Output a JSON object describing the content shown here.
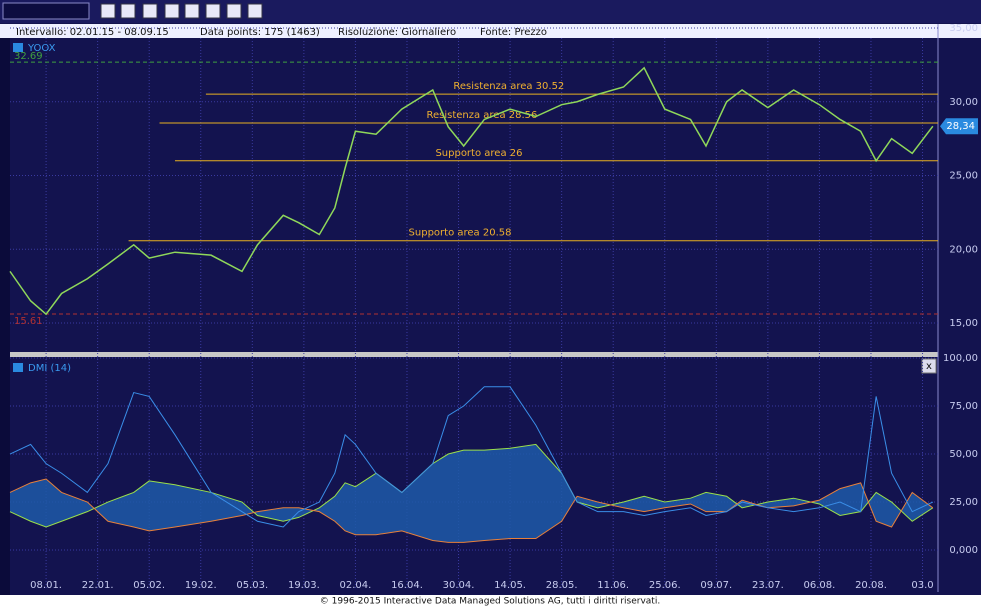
{
  "header": {
    "interval": "Intervallo: 02.01.15 - 08.09.15",
    "points": "Data points: 175 (1463)",
    "resolution": "Risoluzione: Giornaliero",
    "source": "Fonte: Prezzo",
    "close_button": "x"
  },
  "footer": "© 1996-2015 Interactive Data Managed Solutions AG, tutti i diritti riservati.",
  "chart_data": [
    {
      "type": "line",
      "series": [
        {
          "name": "YOOX",
          "color": "#8fd85a",
          "x": [
            0,
            4,
            7,
            10,
            15,
            19,
            24,
            27,
            32,
            39,
            45,
            48,
            53,
            56,
            60,
            63,
            65,
            67,
            71,
            76,
            82,
            85,
            88,
            92,
            97,
            102,
            107,
            110,
            114,
            119,
            123,
            127,
            132,
            135,
            139,
            142,
            147,
            152,
            157,
            161,
            165,
            168,
            171,
            175,
            179
          ],
          "values": [
            18.5,
            16.5,
            15.6,
            17,
            18,
            19,
            20.3,
            19.4,
            19.8,
            19.6,
            18.5,
            20.3,
            22.3,
            21.8,
            21,
            22.8,
            25.5,
            28,
            27.8,
            29.5,
            30.8,
            28.3,
            27,
            28.8,
            29.5,
            29,
            29.8,
            30,
            30.5,
            31,
            32.3,
            29.5,
            28.8,
            27,
            30,
            30.8,
            29.6,
            30.8,
            29.8,
            28.8,
            28,
            26,
            27.5,
            26.5,
            28.34
          ]
        }
      ],
      "xlim": [
        0,
        180
      ],
      "ylim": [
        13,
        35
      ],
      "yticks": [
        {
          "value": 15,
          "label": "15,00"
        },
        {
          "value": 20,
          "label": "20,00"
        },
        {
          "value": 25,
          "label": "25,00"
        },
        {
          "value": 30,
          "label": "30,00"
        },
        {
          "value": 35,
          "label": "35,00"
        }
      ],
      "high": 32.69,
      "low": 15.61,
      "last": {
        "value": 28.34,
        "label": "28,34"
      },
      "levels": [
        {
          "label": "Resistenza area 30.52",
          "value": 30.52,
          "x0": 38
        },
        {
          "label": "Resistenza area 28.56",
          "value": 28.56,
          "x0": 29
        },
        {
          "label": "Supporto area 26",
          "value": 26,
          "x0": 32
        },
        {
          "label": "Supporto area 20.58",
          "value": 20.58,
          "x0": 23
        }
      ],
      "grid": true
    },
    {
      "type": "line",
      "legend": "DMI (14)",
      "x": [
        0,
        4,
        7,
        10,
        15,
        19,
        24,
        27,
        32,
        39,
        45,
        48,
        53,
        56,
        60,
        63,
        65,
        67,
        71,
        76,
        82,
        85,
        88,
        92,
        97,
        102,
        107,
        110,
        114,
        119,
        123,
        127,
        132,
        135,
        139,
        142,
        147,
        152,
        157,
        161,
        165,
        168,
        171,
        175,
        179
      ],
      "series": [
        {
          "color": "#9be04a",
          "values": [
            20,
            15,
            12,
            15,
            20,
            25,
            30,
            36,
            34,
            30,
            25,
            18,
            15,
            17,
            22,
            28,
            35,
            33,
            40,
            30,
            45,
            50,
            52,
            52,
            53,
            55,
            40,
            25,
            22,
            25,
            28,
            25,
            27,
            30,
            28,
            22,
            25,
            27,
            24,
            18,
            20,
            30,
            25,
            15,
            22
          ]
        },
        {
          "color": "#e8803a",
          "values": [
            30,
            35,
            37,
            30,
            25,
            15,
            12,
            10,
            12,
            15,
            18,
            20,
            22,
            22,
            20,
            15,
            10,
            8,
            8,
            10,
            5,
            4,
            4,
            5,
            6,
            6,
            15,
            28,
            25,
            22,
            20,
            22,
            24,
            20,
            20,
            26,
            22,
            23,
            26,
            32,
            35,
            15,
            12,
            30,
            22
          ]
        },
        {
          "color": "#3a8ee8",
          "values": [
            50,
            55,
            45,
            40,
            30,
            45,
            82,
            80,
            60,
            30,
            20,
            15,
            12,
            20,
            25,
            40,
            60,
            55,
            40,
            30,
            45,
            70,
            75,
            85,
            85,
            65,
            40,
            25,
            20,
            20,
            18,
            20,
            22,
            18,
            20,
            25,
            22,
            20,
            22,
            25,
            20,
            80,
            40,
            20,
            25
          ]
        }
      ],
      "xlim": [
        0,
        180
      ],
      "ylim": [
        -20.8,
        100
      ],
      "yticks": [
        {
          "value": 0,
          "label": "0,000"
        },
        {
          "value": 25,
          "label": "25,00"
        },
        {
          "value": 50,
          "label": "50,00"
        },
        {
          "value": 75,
          "label": "75,00"
        },
        {
          "value": 100,
          "label": "100,00"
        }
      ],
      "xticks": [
        {
          "value": 7,
          "label": "08.01."
        },
        {
          "value": 17,
          "label": "22.01."
        },
        {
          "value": 27,
          "label": "05.02."
        },
        {
          "value": 37,
          "label": "19.02."
        },
        {
          "value": 47,
          "label": "05.03."
        },
        {
          "value": 57,
          "label": "19.03."
        },
        {
          "value": 67,
          "label": "02.04."
        },
        {
          "value": 77,
          "label": "16.04."
        },
        {
          "value": 87,
          "label": "30.04."
        },
        {
          "value": 97,
          "label": "14.05."
        },
        {
          "value": 107,
          "label": "28.05."
        },
        {
          "value": 117,
          "label": "11.06."
        },
        {
          "value": 127,
          "label": "25.06."
        },
        {
          "value": 137,
          "label": "09.07."
        },
        {
          "value": 147,
          "label": "23.07."
        },
        {
          "value": 157,
          "label": "06.08."
        },
        {
          "value": 167,
          "label": "20.08."
        },
        {
          "value": 177,
          "label": "03.0"
        }
      ],
      "grid": true
    }
  ]
}
